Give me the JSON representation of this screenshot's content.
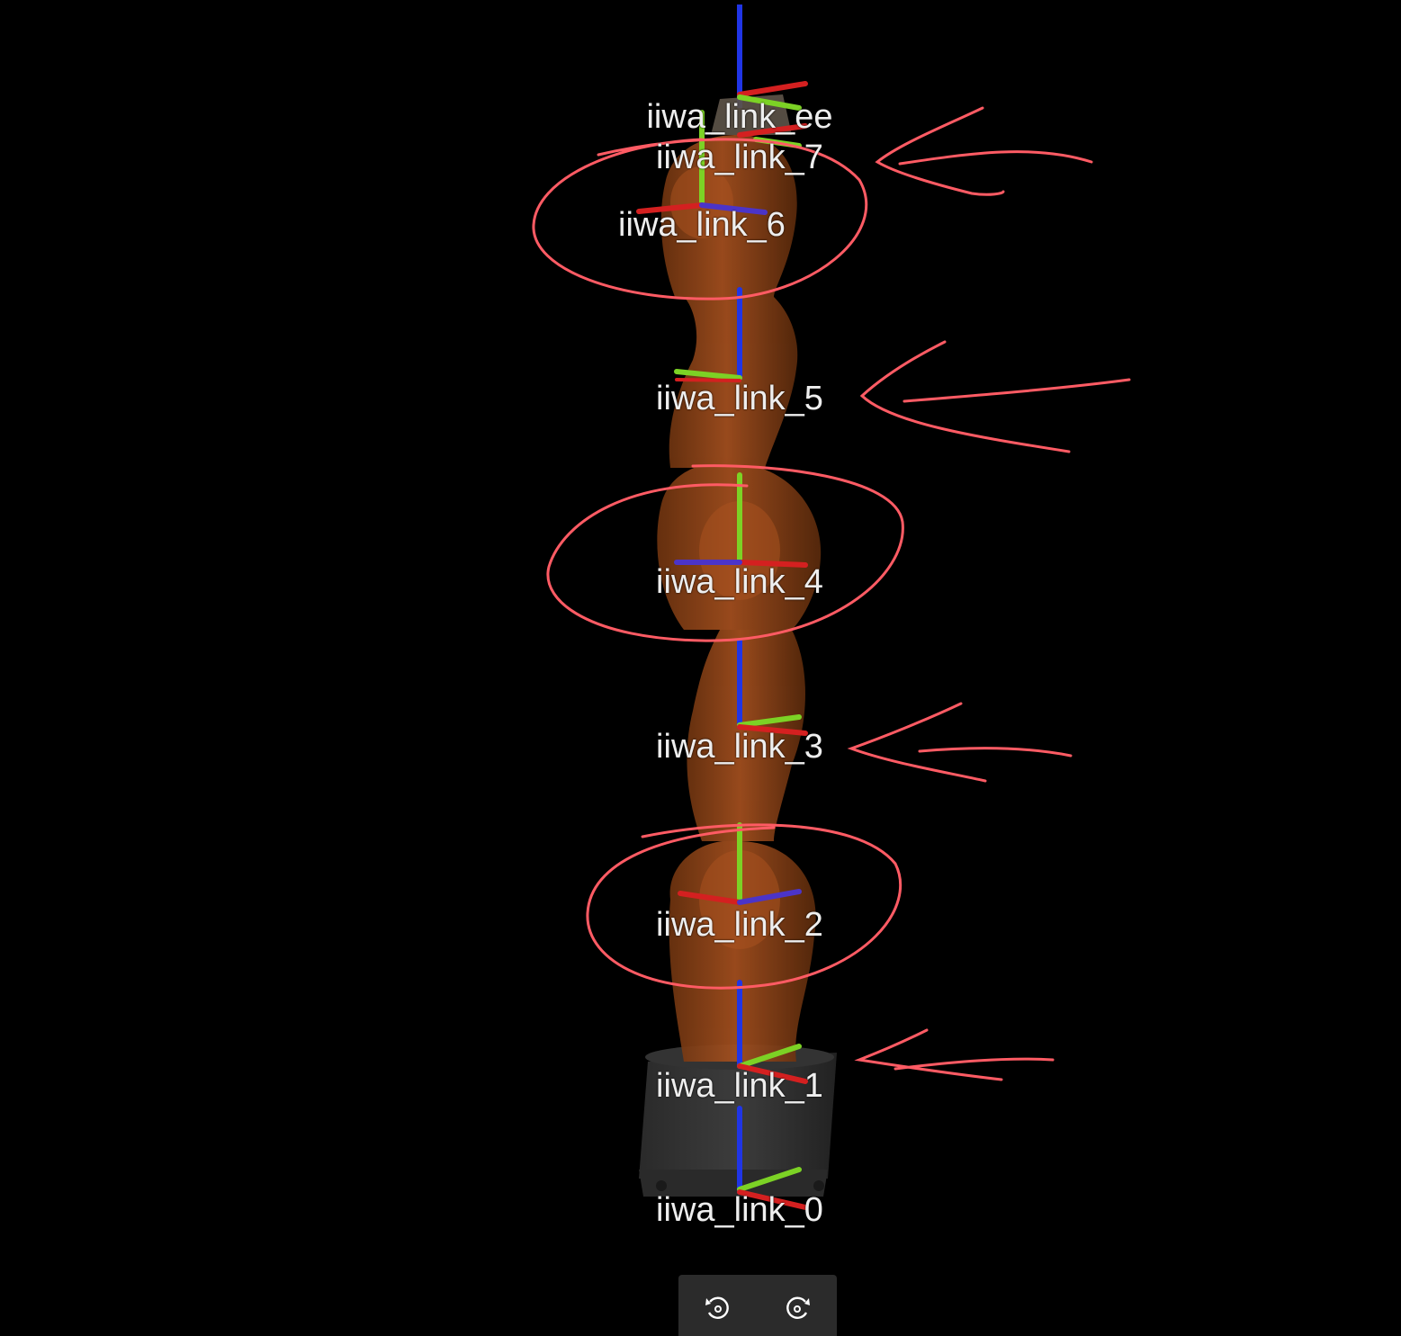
{
  "colors": {
    "background": "#000000",
    "link_body": "#a5501f",
    "base_body": "#3a3a3a",
    "axis_x": "#d42020",
    "axis_y": "#7cd225",
    "axis_z": "#2035e6",
    "annotation": "#ff5b64",
    "label_text": "#eeeeee",
    "toolbar_bg": "#2b2b2b"
  },
  "frames": [
    {
      "name": "iiwa_link_ee"
    },
    {
      "name": "iiwa_link_7"
    },
    {
      "name": "iiwa_link_6"
    },
    {
      "name": "iiwa_link_5"
    },
    {
      "name": "iiwa_link_4"
    },
    {
      "name": "iiwa_link_3"
    },
    {
      "name": "iiwa_link_2"
    },
    {
      "name": "iiwa_link_1"
    },
    {
      "name": "iiwa_link_0"
    }
  ],
  "toolbar": {
    "buttons": [
      {
        "icon": "rotate-counterclockwise-icon"
      },
      {
        "icon": "rotate-clockwise-icon"
      }
    ]
  }
}
